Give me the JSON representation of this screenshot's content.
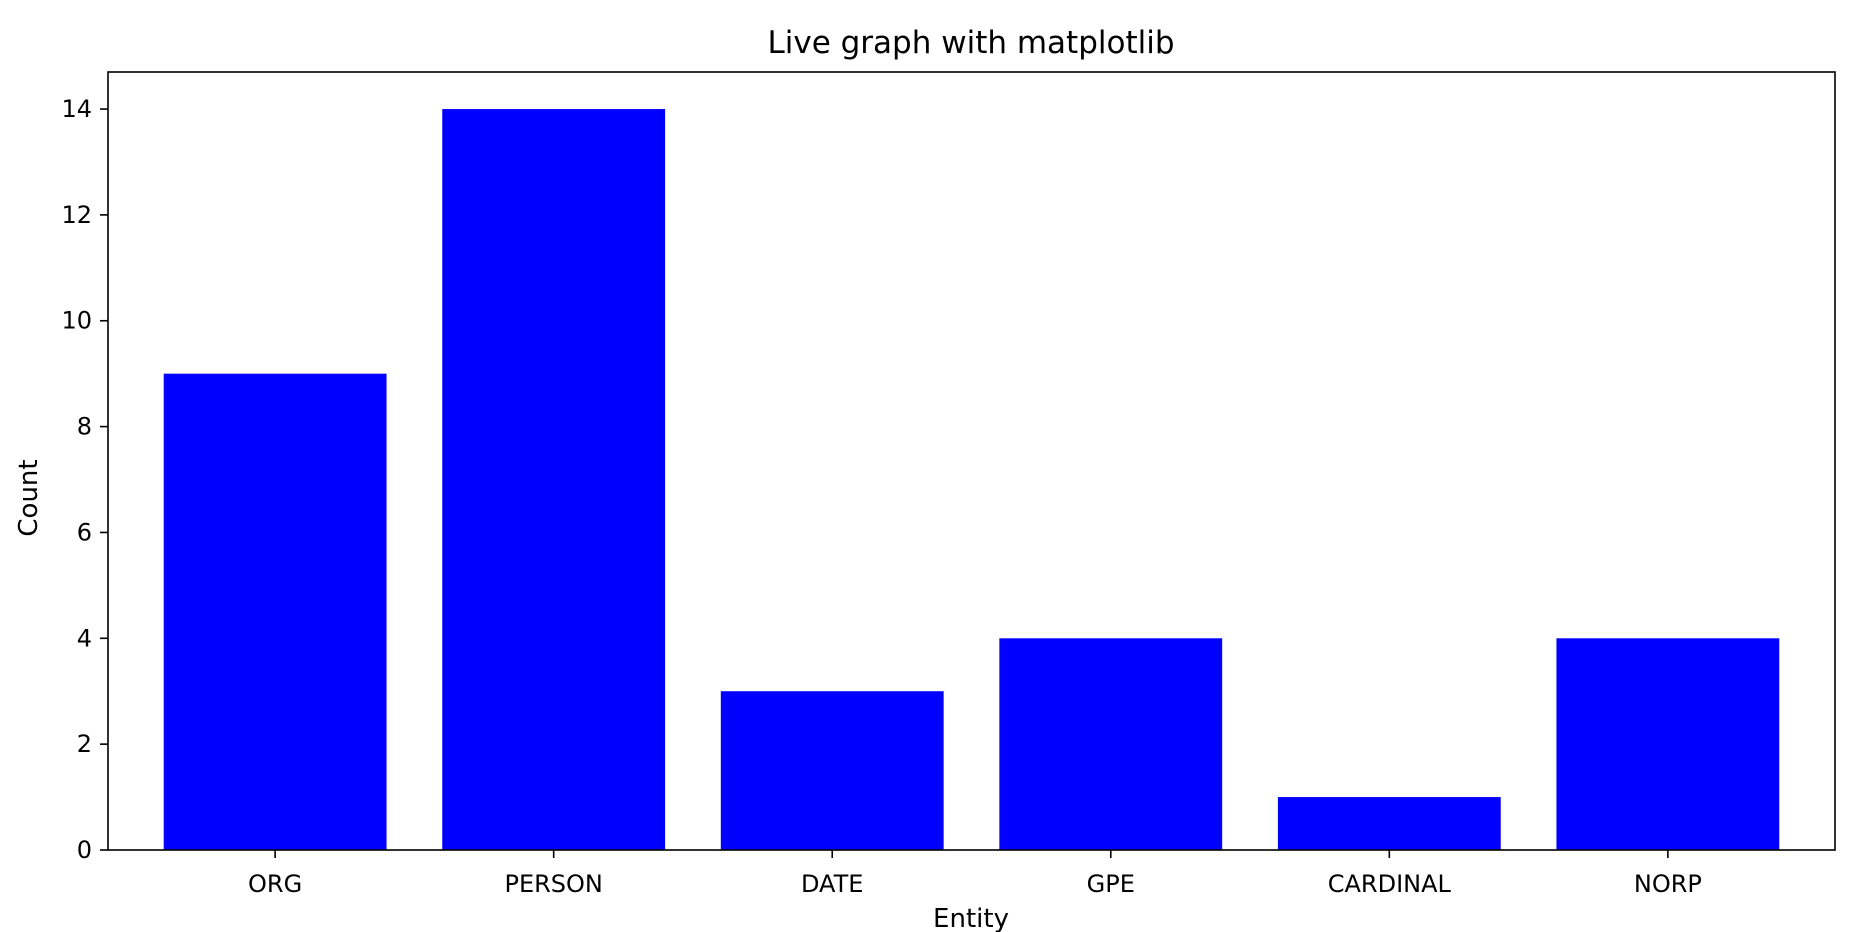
{
  "chart_data": {
    "type": "bar",
    "title": "Live graph with matplotlib",
    "xlabel": "Entity",
    "ylabel": "Count",
    "categories": [
      "ORG",
      "PERSON",
      "DATE",
      "GPE",
      "CARDINAL",
      "NORP"
    ],
    "values": [
      9,
      14,
      3,
      4,
      1,
      4
    ],
    "ylim": [
      0,
      14.7
    ],
    "yticks": [
      0,
      2,
      4,
      6,
      8,
      10,
      12,
      14
    ],
    "grid": false,
    "bar_color": "#0000ff",
    "axis_color": "#000000",
    "background": "#ffffff"
  }
}
